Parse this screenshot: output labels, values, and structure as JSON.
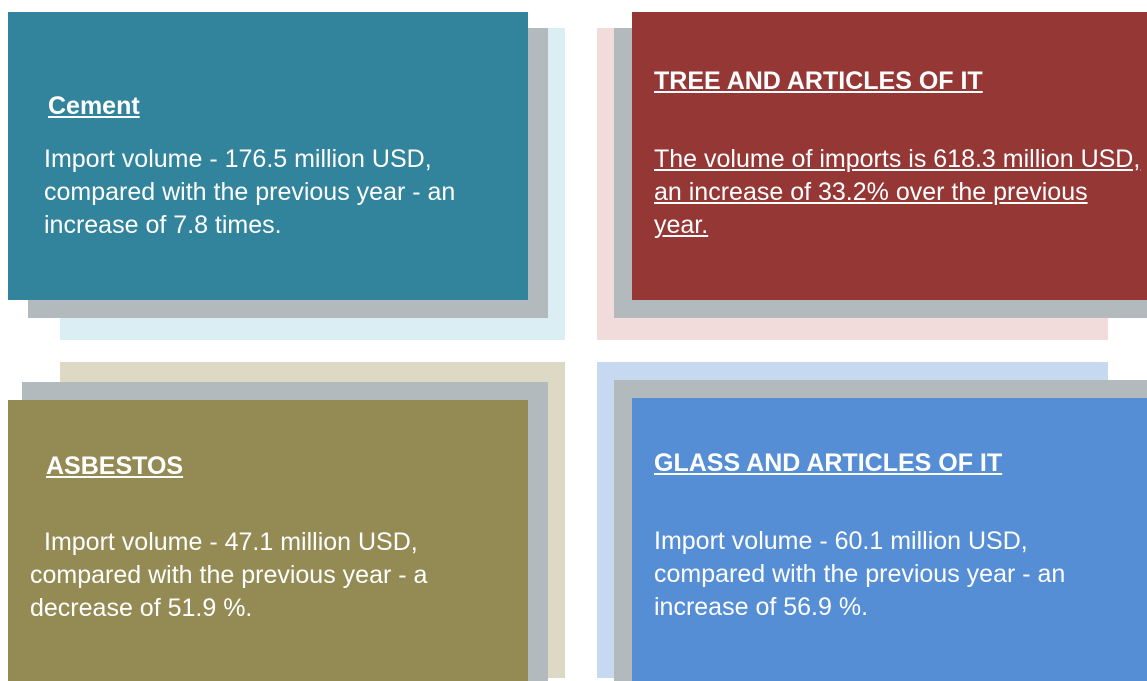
{
  "cards": [
    {
      "title": "Cement",
      "body": "Import volume - 176.5 million USD, compared with the previous year - an increase of 7.8 times."
    },
    {
      "title": "TREE AND ARTICLES OF IT",
      "body": "The volume of imports is 618.3 million USD, an increase of 33.2% over the previous year."
    },
    {
      "title": "ASBESTOS",
      "body": "Import volume - 47.1 million USD, compared with the previous year - a decrease of 51.9 %."
    },
    {
      "title": "GLASS AND ARTICLES OF IT",
      "body": "Import volume - 60.1 million USD, compared with the previous year - an increase of 56.9 %."
    }
  ]
}
